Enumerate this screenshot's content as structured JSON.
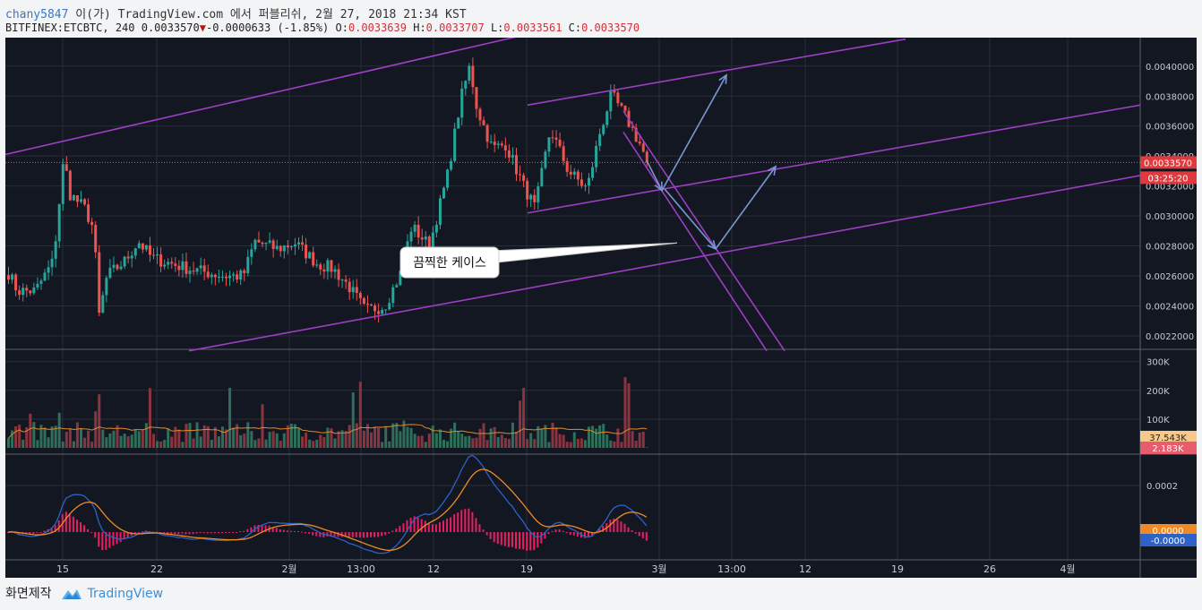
{
  "header": {
    "user": "chany5847",
    "published_text": "이(가) TradingView.com 에서 퍼블리쉬, 2월 27, 2018 21:34 KST",
    "symbol_line": "BITFINEX:ETCBTC, 240 0.0033570",
    "change": "-0.0000633 (-1.85%)",
    "o_label": "O:",
    "o_value": "0.0033639",
    "h_label": "H:",
    "h_value": "0.0033707",
    "l_label": "L:",
    "l_value": "0.0033561",
    "c_label": "C:",
    "c_value": "0.0033570"
  },
  "footer": {
    "made_by": "화면제작",
    "brand": "TradingView"
  },
  "colors": {
    "bg": "#131722",
    "grid": "#2a2e39",
    "up": "#26a69a",
    "down": "#ef5350",
    "channel": "#9c3fc2",
    "arrow": "#7b97cf",
    "volume_ma": "#e08a2c",
    "macd": "#2d62c8",
    "signal": "#f08a24",
    "hist": "#e91e63",
    "price_line": "#ef5350"
  },
  "annotation": {
    "text": "끔찍한 케이스"
  },
  "chart_data": {
    "type": "candlestick",
    "timeframe": "240",
    "x_ticks": [
      "15",
      "22",
      "2월",
      "13:00",
      "12",
      "19",
      "3월",
      "13:00",
      "12",
      "19",
      "26",
      "4월"
    ],
    "price_ticks": [
      "0.0040000",
      "0.0038000",
      "0.0036000",
      "0.0034000",
      "0.0032000",
      "0.0030000",
      "0.0028000",
      "0.0026000",
      "0.0024000",
      "0.0022000"
    ],
    "volume_ticks": [
      "300K",
      "200K",
      "100K"
    ],
    "macd_ticks": [
      "0.0002"
    ],
    "last_price": "0.0033570",
    "countdown": "03:25:20",
    "volume_ma_label": "37.543K",
    "volume_last_label": "2.183K",
    "macd_label": "0.0000",
    "signal_label": "-0.0000",
    "ylim": [
      0.00211,
      0.00419
    ],
    "close_path": [
      [
        0,
        0.00262
      ],
      [
        10,
        0.0025
      ],
      [
        30,
        0.0025
      ],
      [
        50,
        0.0027
      ],
      [
        62,
        0.0034
      ],
      [
        68,
        0.00315
      ],
      [
        85,
        0.00305
      ],
      [
        96,
        0.0029
      ],
      [
        100,
        0.0023
      ],
      [
        110,
        0.0026
      ],
      [
        130,
        0.0027
      ],
      [
        145,
        0.00283
      ],
      [
        160,
        0.00272
      ],
      [
        200,
        0.00265
      ],
      [
        240,
        0.0026
      ],
      [
        262,
        0.0026
      ],
      [
        275,
        0.00283
      ],
      [
        300,
        0.00278
      ],
      [
        320,
        0.00282
      ],
      [
        345,
        0.00268
      ],
      [
        362,
        0.00265
      ],
      [
        380,
        0.00253
      ],
      [
        398,
        0.00237
      ],
      [
        420,
        0.0024
      ],
      [
        438,
        0.00262
      ],
      [
        450,
        0.00293
      ],
      [
        470,
        0.0028
      ],
      [
        490,
        0.00327
      ],
      [
        505,
        0.00378
      ],
      [
        515,
        0.004
      ],
      [
        523,
        0.00372
      ],
      [
        540,
        0.00345
      ],
      [
        555,
        0.00348
      ],
      [
        575,
        0.0032
      ],
      [
        588,
        0.00305
      ],
      [
        605,
        0.00358
      ],
      [
        625,
        0.0033
      ],
      [
        646,
        0.00318
      ],
      [
        660,
        0.00355
      ],
      [
        673,
        0.00381
      ],
      [
        690,
        0.00365
      ],
      [
        705,
        0.00348
      ],
      [
        713,
        0.00336
      ]
    ],
    "annotations": {
      "channels": [
        {
          "name": "outer-upper",
          "from": [
            0,
            0.00341
          ],
          "to": [
            690,
            0.00436
          ]
        },
        {
          "name": "outer-lower",
          "from": [
            205,
            0.0021
          ],
          "to": [
            1267,
            0.00327
          ]
        },
        {
          "name": "inner-upper",
          "from": [
            583,
            0.00374
          ],
          "to": [
            1005,
            0.00418
          ]
        },
        {
          "name": "inner-lower",
          "from": [
            583,
            0.00302
          ],
          "to": [
            1267,
            0.00374
          ]
        },
        {
          "name": "down-a",
          "from": [
            690,
            0.0037
          ],
          "to": [
            870,
            0.0021
          ]
        },
        {
          "name": "down-b",
          "from": [
            690,
            0.00356
          ],
          "to": [
            850,
            0.0021
          ]
        }
      ],
      "arrows": [
        {
          "from": [
            716,
            0.00337
          ],
          "to": [
            733,
            0.00317
          ]
        },
        {
          "from": [
            733,
            0.00317
          ],
          "to": [
            805,
            0.00394
          ]
        },
        {
          "from": [
            736,
            0.00318
          ],
          "to": [
            793,
            0.00278
          ]
        },
        {
          "from": [
            793,
            0.00278
          ],
          "to": [
            860,
            0.00333
          ]
        }
      ],
      "callout_pointer": [
        750,
        0.00282
      ]
    }
  }
}
